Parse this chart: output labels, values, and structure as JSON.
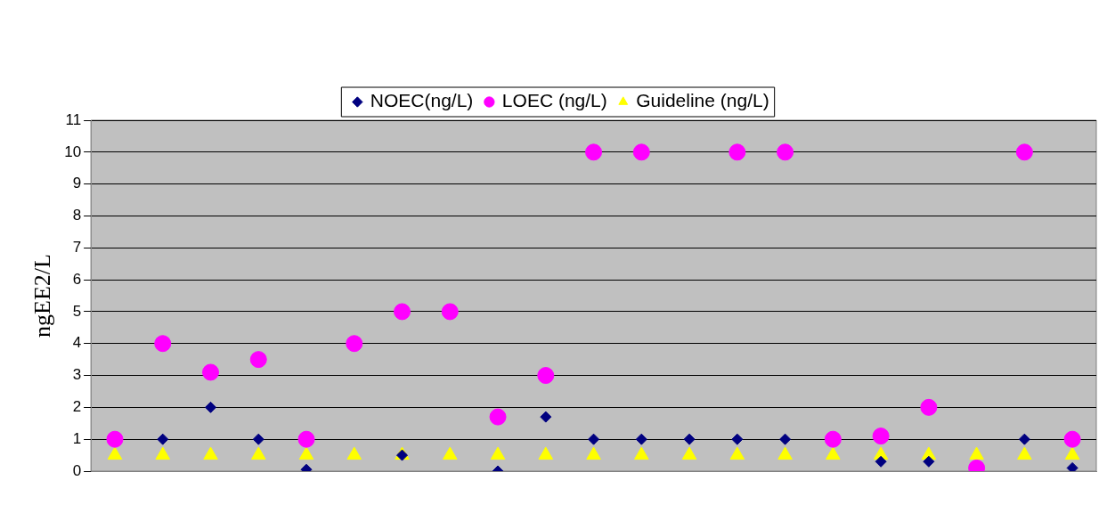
{
  "chart_data": {
    "type": "scatter",
    "ylabel": "ngEE2/L",
    "categories": [
      null,
      null,
      null,
      null,
      null,
      null,
      null,
      null,
      null,
      null,
      null,
      null,
      null,
      null,
      null,
      null,
      null,
      null,
      null,
      null,
      null
    ],
    "series": [
      {
        "name": "NOEC(ng/L)",
        "color": "#000080",
        "marker": "diamond",
        "values": [
          null,
          1,
          2,
          1,
          0.05,
          null,
          0.5,
          null,
          0,
          1.7,
          1,
          1,
          1,
          1,
          1,
          null,
          0.3,
          0.3,
          null,
          1,
          0.1
        ]
      },
      {
        "name": "LOEC (ng/L)",
        "color": "#ff00ff",
        "marker": "circle",
        "values": [
          1,
          4,
          3.1,
          3.5,
          1,
          4,
          5,
          5,
          1.7,
          3,
          10,
          10,
          null,
          10,
          10,
          1,
          1.1,
          2,
          0.1,
          10,
          1
        ]
      },
      {
        "name": "Guideline (ng/L)",
        "color": "#ffff00",
        "marker": "triangle",
        "values": [
          0.5,
          0.5,
          0.5,
          0.5,
          0.5,
          0.5,
          0.5,
          0.5,
          0.5,
          0.5,
          0.5,
          0.5,
          0.5,
          0.5,
          0.5,
          0.5,
          0.5,
          0.5,
          0.5,
          0.5,
          0.5
        ]
      }
    ],
    "ylim": [
      0,
      11
    ],
    "yticks": [
      0,
      1,
      2,
      3,
      4,
      5,
      6,
      7,
      8,
      9,
      10,
      11
    ],
    "grid": "y",
    "legend": "top",
    "tick_labels": "y"
  }
}
